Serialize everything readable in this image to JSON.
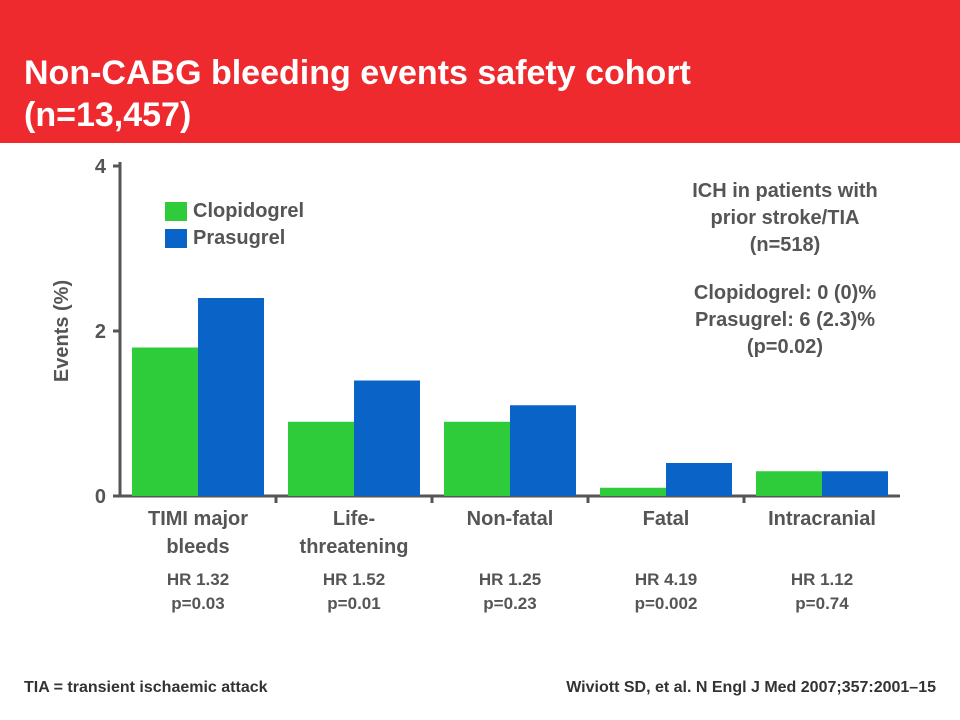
{
  "slide": {
    "title_line1": "Non-CABG bleeding events safety cohort",
    "title_line2": "(n=13,457)"
  },
  "colors": {
    "header": "#ee2a2f",
    "clopidogrel": "#2ecc3a",
    "prasugrel": "#0a64c8",
    "axis": "#555555",
    "text": "#555555"
  },
  "chart_data": {
    "type": "bar",
    "ylabel": "Events (%)",
    "ylim": [
      0,
      4
    ],
    "yticks": [
      "0",
      "2",
      "4"
    ],
    "category_lines": [
      [
        "TIMI major",
        "bleeds"
      ],
      [
        "Life-",
        "threatening"
      ],
      [
        "Non-fatal"
      ],
      [
        "Fatal"
      ],
      [
        "Intracranial"
      ]
    ],
    "stats": [
      [
        "HR 1.32",
        "p=0.03"
      ],
      [
        "HR 1.52",
        "p=0.01"
      ],
      [
        "HR 1.25",
        "p=0.23"
      ],
      [
        "HR 4.19",
        "p=0.002"
      ],
      [
        "HR 1.12",
        "p=0.74"
      ]
    ],
    "series": [
      {
        "name": "Clopidogrel",
        "values": [
          1.8,
          0.9,
          0.9,
          0.1,
          0.3
        ]
      },
      {
        "name": "Prasugrel",
        "values": [
          2.4,
          1.4,
          1.1,
          0.4,
          0.3
        ]
      }
    ],
    "legend_position": "top-left",
    "grid": false
  },
  "annotation": {
    "lines1": [
      "ICH in patients with",
      "prior stroke/TIA",
      "(n=518)"
    ],
    "lines2": [
      "Clopidogrel: 0 (0)%",
      "Prasugrel: 6 (2.3)%",
      "(p=0.02)"
    ]
  },
  "footer": {
    "left": "TIA = transient ischaemic attack",
    "right": "Wiviott SD, et al. N Engl J Med 2007;357:2001–15"
  }
}
